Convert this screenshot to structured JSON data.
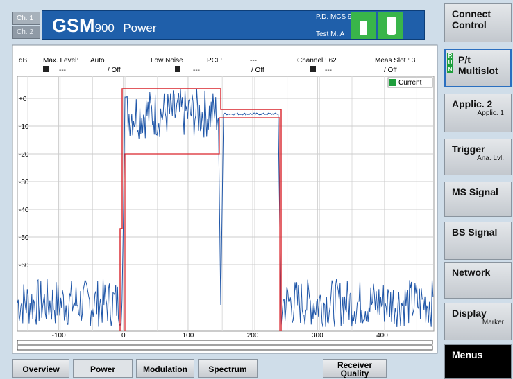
{
  "channel_buttons": [
    "Ch. 1",
    "Ch. 2"
  ],
  "header": {
    "title_main": "GSM",
    "title_band": "900",
    "title_mode": "Power",
    "status": [
      "P.D. MCS 9",
      "Test M. A"
    ]
  },
  "plot_header": {
    "row1": [
      "dB",
      "Max. Level:",
      "Auto",
      "Low Noise",
      "PCL:",
      "---",
      "Channel : 62",
      "Meas Slot : 3"
    ],
    "row2": [
      "---",
      "/ Off",
      "---",
      "/ Off",
      "---",
      "/ Off"
    ]
  },
  "legend": "Current",
  "plot": {
    "xlim": [
      -164,
      480
    ],
    "ylim": [
      -84,
      8
    ],
    "xticks": [
      -100,
      0,
      100,
      200,
      300,
      400
    ],
    "yticks": [
      {
        "value": 0,
        "label": "+0"
      },
      -10,
      -20,
      -30,
      -40,
      -50,
      -60
    ]
  },
  "softkeys": [
    {
      "label": "Connect Control"
    },
    {
      "label": "P/t Multislot",
      "badge": "RUN"
    },
    {
      "label": "Applic. 2",
      "sub": "Applic. 1"
    },
    {
      "label": "Trigger",
      "sub": "Ana. Lvl."
    },
    {
      "label": "MS Signal"
    },
    {
      "label": "BS Signal"
    },
    {
      "label": "Network"
    },
    {
      "label": "Display",
      "sub": "Marker"
    },
    {
      "label": "Menus"
    }
  ],
  "tabs": [
    "Overview",
    "Power",
    "Modulation",
    "Spectrum",
    "Receiver Quality"
  ]
}
